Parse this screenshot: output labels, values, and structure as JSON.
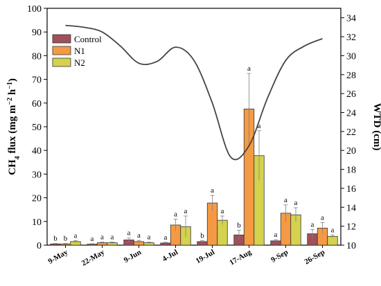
{
  "colors": {
    "Control": "#a0505a",
    "N1": "#f59a44",
    "N2": "#d4d24e",
    "wtd_line": "#444444",
    "errorbar": "#808080"
  },
  "chart_data": {
    "type": "bar",
    "categories": [
      "9-May",
      "22-May",
      "9-Jun",
      "4-Jul",
      "19-Jul",
      "17-Aug",
      "9-Sep",
      "26-Sep"
    ],
    "series": [
      {
        "name": "Control",
        "values": [
          0.5,
          0.4,
          2.2,
          0.9,
          1.5,
          4.3,
          1.8,
          4.8
        ],
        "errors": [
          0.2,
          0.2,
          0.8,
          0.3,
          0.4,
          2.0,
          0.5,
          1.8
        ],
        "letters": [
          "b",
          "a",
          "a",
          "a",
          "b",
          "b",
          "a",
          "a"
        ]
      },
      {
        "name": "N1",
        "values": [
          0.5,
          1.0,
          1.5,
          8.5,
          17.8,
          57.5,
          13.5,
          7.2
        ],
        "errors": [
          0.2,
          0.3,
          0.5,
          2.5,
          3.2,
          15.0,
          3.5,
          2.3
        ],
        "letters": [
          "b",
          "a",
          "a",
          "a",
          "a",
          "a",
          "a",
          "a"
        ]
      },
      {
        "name": "N2",
        "values": [
          1.5,
          1.0,
          1.0,
          7.8,
          10.5,
          37.8,
          12.8,
          3.7
        ],
        "errors": [
          0.4,
          0.3,
          0.3,
          4.5,
          1.8,
          10.5,
          3.0,
          0.6
        ],
        "letters": [
          "a",
          "a",
          "a",
          "a",
          "a",
          "a",
          "a",
          "a"
        ]
      }
    ],
    "y_left": {
      "label_prefix": "CH",
      "label_sub": "4",
      "label_mid": " flux (mg m",
      "label_sup1": "−2",
      "label_h": " h",
      "label_sup2": "−1",
      "label_suffix": ")",
      "range": [
        0,
        100
      ],
      "ticks": [
        "0",
        "10",
        "20",
        "30",
        "40",
        "50",
        "60",
        "70",
        "80",
        "90",
        "100"
      ]
    },
    "y_right": {
      "label": "WTD (cm)",
      "range": [
        10,
        35
      ],
      "ticks": [
        "10",
        "12",
        "14",
        "16",
        "18",
        "20",
        "22",
        "24",
        "26",
        "28",
        "30",
        "32",
        "34"
      ]
    },
    "wtd_line": {
      "x": [
        0,
        0.5,
        1,
        1.5,
        2,
        2.5,
        3,
        3.5,
        4,
        4.5,
        5,
        5.5,
        6,
        6.5,
        7
      ],
      "y": [
        33.2,
        33.0,
        32.5,
        31.0,
        29.2,
        29.4,
        30.9,
        29.5,
        25.0,
        19.3,
        20.5,
        25.5,
        29.5,
        31.0,
        31.8
      ]
    },
    "legend_position": "top-left",
    "grid": false
  }
}
